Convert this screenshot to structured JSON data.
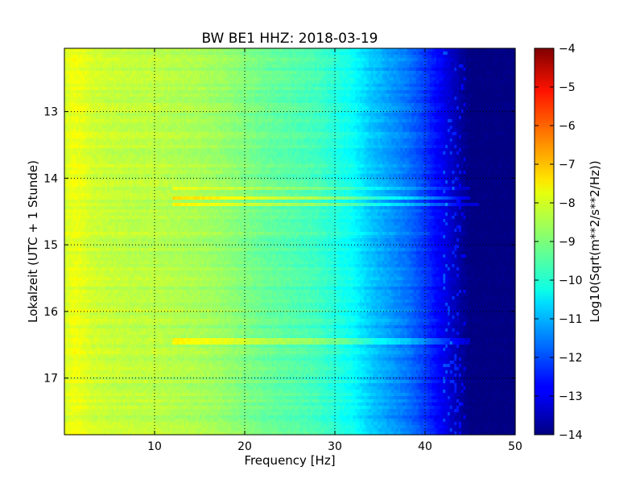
{
  "chart_data": {
    "type": "heatmap",
    "title": "BW BE1 HHZ: 2018-03-19",
    "xlabel": "Frequency [Hz]",
    "ylabel": "Lokalzeit (UTC + 1 Stunde)",
    "xlim": [
      0,
      50
    ],
    "ylim": [
      17.85,
      12.05
    ],
    "y_inverted": true,
    "x_ticks": [
      10,
      20,
      30,
      40,
      50
    ],
    "x_tick_labels": [
      "10",
      "20",
      "30",
      "40",
      "50"
    ],
    "y_ticks": [
      13,
      14,
      15,
      16,
      17
    ],
    "y_tick_labels": [
      "13",
      "14",
      "15",
      "16",
      "17"
    ],
    "grid": true,
    "colormap": "jet",
    "colorbar": {
      "label": "Log10(Sqrt(m**2/s**2/Hz))",
      "range": [
        -14,
        -4
      ],
      "ticks": [
        -4,
        -5,
        -6,
        -7,
        -8,
        -9,
        -10,
        -11,
        -12,
        -13,
        -14
      ],
      "tick_labels": [
        "−4",
        "−5",
        "−6",
        "−7",
        "−8",
        "−9",
        "−10",
        "−11",
        "−12",
        "−13",
        "−14"
      ]
    },
    "spectrum_profile": {
      "frequency_hz": [
        0,
        1,
        2,
        3,
        5,
        8,
        10,
        12,
        15,
        18,
        20,
        22,
        25,
        28,
        30,
        32,
        33,
        34,
        36,
        38,
        40,
        41,
        42,
        43,
        44,
        45,
        46,
        50
      ],
      "log10_amplitude": [
        -8.2,
        -7.9,
        -8.0,
        -8.2,
        -8.3,
        -8.4,
        -8.4,
        -8.5,
        -8.6,
        -8.8,
        -9.0,
        -9.2,
        -9.4,
        -9.6,
        -9.9,
        -10.2,
        -10.5,
        -10.8,
        -11.2,
        -11.6,
        -12.2,
        -12.6,
        -12.9,
        -13.3,
        -13.7,
        -14.0,
        -14.0,
        -14.0
      ]
    },
    "noise_bursts": [
      {
        "time": 14.15,
        "offset": -0.8,
        "to_hz": 45
      },
      {
        "time": 14.3,
        "offset": -1.2,
        "to_hz": 45
      },
      {
        "time": 14.4,
        "offset": -1.0,
        "to_hz": 46
      },
      {
        "time": 16.45,
        "offset": -0.9,
        "to_hz": 45
      }
    ]
  }
}
